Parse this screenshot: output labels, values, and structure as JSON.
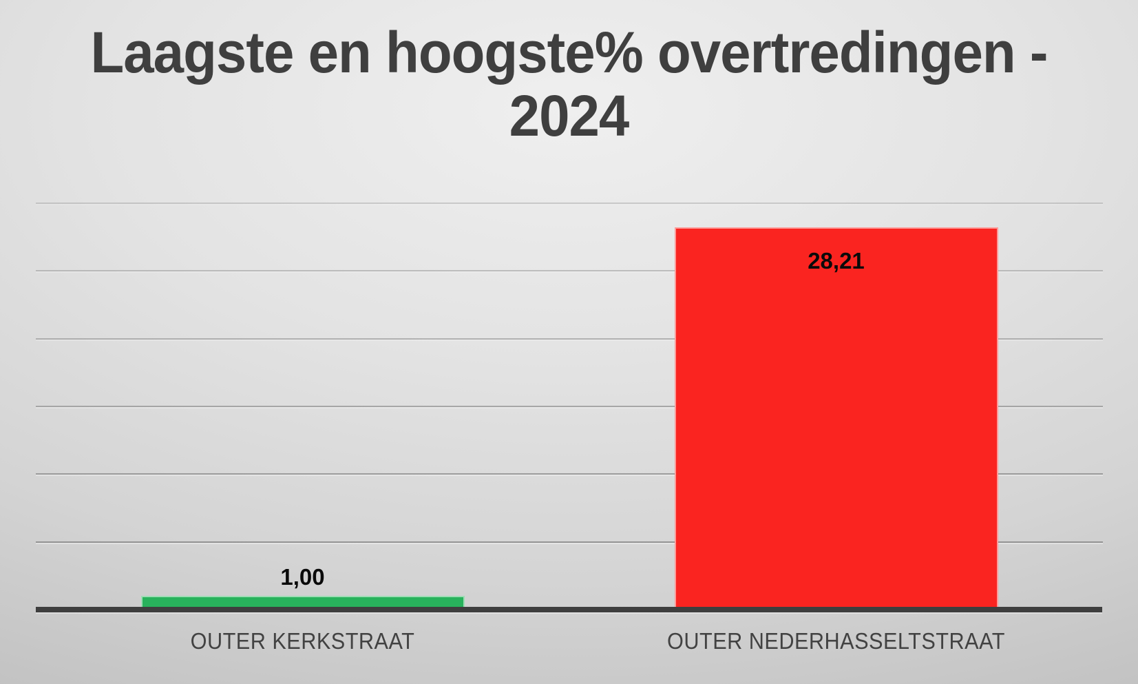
{
  "title": {
    "full": "Laagste en hoogste% overtredingen - 2024",
    "line1": "Laagste en hoogste% overtredingen -",
    "line2": "2024"
  },
  "colors": {
    "title_text": "#3f3f3f",
    "category_text": "#424242",
    "value_text": "#0a0a0a",
    "axis_line": "#3e3e3e",
    "gridline": "#8d8d8d",
    "background_light": "#efefef",
    "background_dark": "#b2b2b2",
    "bar_low": "#28b25c",
    "bar_high": "#fa2420"
  },
  "chart_data": {
    "type": "bar",
    "title": "Laagste en hoogste% overtredingen - 2024",
    "xlabel": "",
    "ylabel": "",
    "categories": [
      "OUTER KERKSTRAAT",
      "OUTER NEDERHASSELTSTRAAT"
    ],
    "values": [
      1.0,
      28.21
    ],
    "value_labels": [
      "1,00",
      "28,21"
    ],
    "bar_colors": [
      "#28b25c",
      "#fa2420"
    ],
    "value_label_inside": [
      false,
      true
    ],
    "ylim": [
      0,
      30
    ],
    "gridline_step": 5,
    "grid": true,
    "y_tick_labels_shown": false,
    "legend": false
  }
}
